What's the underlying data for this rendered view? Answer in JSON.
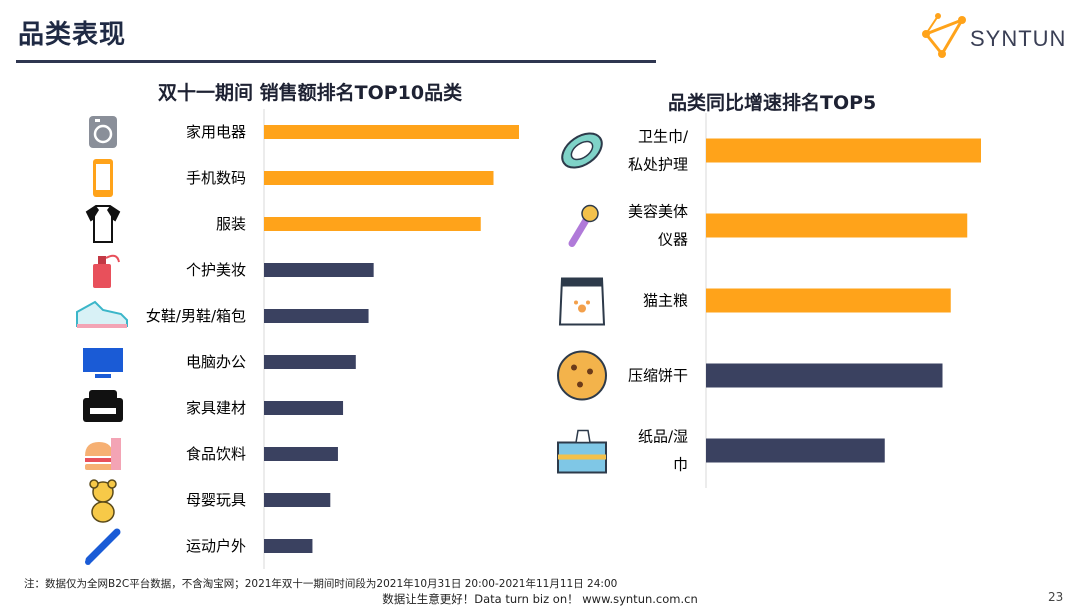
{
  "header": {
    "title": "品类表现",
    "logo_text": "SYNTUN"
  },
  "colors": {
    "orange": "#FFA31A",
    "navy": "#3A4160",
    "axis": "#d9d9d9"
  },
  "chart_data": [
    {
      "type": "bar",
      "orientation": "horizontal",
      "title": "双十一期间  销售额排名TOP10品类",
      "categories": [
        "家用电器",
        "手机数码",
        "服装",
        "个护美妆",
        "女鞋/男鞋/箱包",
        "电脑办公",
        "家具建材",
        "食品饮料",
        "母婴玩具",
        "运动户外"
      ],
      "values": [
        100,
        90,
        85,
        43,
        41,
        36,
        31,
        29,
        26,
        19
      ],
      "highlight_count": 3,
      "icons": [
        "camera-icon",
        "phone-icon",
        "tshirt-icon",
        "perfume-icon",
        "sneaker-icon",
        "monitor-icon",
        "sofa-icon",
        "burger-drink-icon",
        "teddy-bear-icon",
        "baseball-bat-icon"
      ],
      "xlim": [
        0,
        100
      ]
    },
    {
      "type": "bar",
      "orientation": "horizontal",
      "title": "品类同比增速排名TOP5",
      "categories": [
        [
          "卫生巾/",
          "私处护理"
        ],
        [
          "美容美体",
          "仪器"
        ],
        [
          "猫主粮"
        ],
        [
          "压缩饼干"
        ],
        [
          "纸品/湿",
          "巾"
        ]
      ],
      "values": [
        100,
        95,
        89,
        86,
        65
      ],
      "highlight_count": 3,
      "icons": [
        "sanitary-pad-icon",
        "beauty-device-icon",
        "pet-food-bag-icon",
        "biscuit-icon",
        "tissue-box-icon"
      ],
      "xlim": [
        0,
        100
      ]
    }
  ],
  "footnote": "注：数据仅为全网B2C平台数据，不含淘宝网；2021年双十一期间时间段为2021年10月31日 20:00-2021年11月11日 24:00",
  "footer": "数据让生意更好！Data turn biz on！ www.syntun.com.cn",
  "page_number": "23"
}
